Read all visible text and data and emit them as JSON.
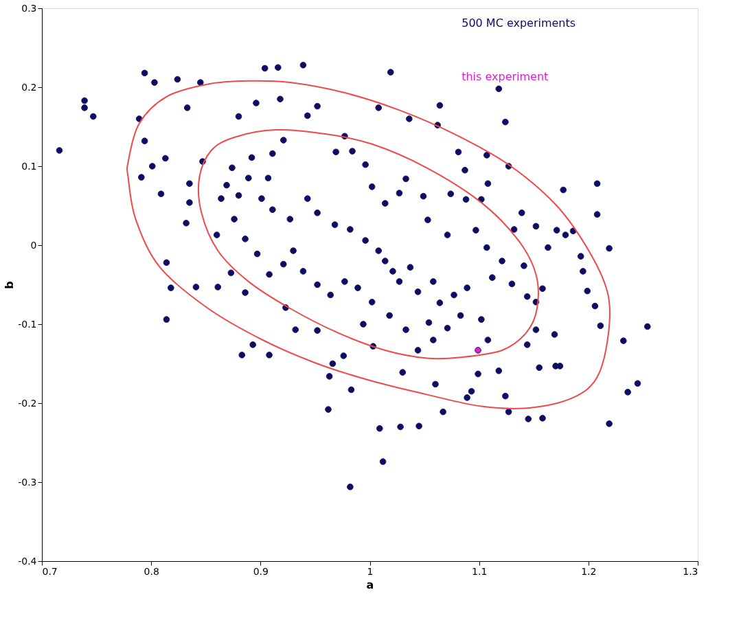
{
  "chart_data": {
    "type": "scatter",
    "xlabel": "a",
    "ylabel": "b",
    "xlim": [
      0.7,
      1.3
    ],
    "ylim": [
      -0.4,
      0.3
    ],
    "xticks": [
      0.7,
      0.8,
      0.9,
      1,
      1.1,
      1.2,
      1.3
    ],
    "yticks": [
      -0.4,
      -0.3,
      -0.2,
      -0.1,
      0,
      0.1,
      0.2,
      0.3
    ],
    "grid": false,
    "legend": "top right",
    "marker": "circle",
    "series": [
      {
        "name": "500 MC experiments",
        "color": "#0c0c66",
        "x": [
          0.716,
          0.739,
          0.739,
          0.747,
          0.794,
          0.803,
          0.789,
          0.794,
          0.801,
          0.791,
          0.809,
          0.813,
          0.824,
          0.833,
          0.845,
          0.814,
          0.818,
          0.814,
          0.841,
          0.861,
          0.832,
          0.835,
          0.835,
          0.86,
          0.847,
          0.864,
          0.873,
          0.883,
          0.88,
          0.896,
          0.904,
          0.916,
          0.939,
          0.918,
          0.886,
          0.893,
          0.908,
          0.923,
          0.932,
          0.952,
          0.966,
          0.963,
          0.962,
          0.983,
          0.976,
          0.982,
          1.009,
          1.012,
          1.028,
          1.045,
          1.067,
          1.06,
          1.019,
          1.008,
          1.036,
          1.064,
          1.062,
          1.081,
          1.087,
          1.107,
          1.118,
          1.124,
          1.108,
          1.127,
          1.139,
          1.132,
          1.152,
          1.163,
          1.177,
          1.171,
          1.179,
          1.186,
          1.193,
          1.208,
          1.208,
          1.219,
          1.195,
          1.199,
          1.206,
          1.211,
          1.219,
          1.232,
          1.236,
          1.245,
          1.254,
          1.17,
          1.174,
          1.158,
          1.145,
          1.127,
          1.124,
          1.118,
          1.155,
          1.144,
          1.152,
          1.169,
          1.158,
          1.152,
          1.144,
          1.13,
          1.141,
          1.121,
          1.112,
          1.107,
          1.097,
          1.102,
          1.088,
          1.074,
          1.071,
          1.053,
          1.049,
          1.033,
          1.027,
          1.014,
          1.002,
          0.996,
          0.984,
          0.969,
          0.977,
          0.952,
          0.943,
          0.921,
          0.911,
          0.907,
          0.901,
          0.911,
          0.927,
          0.943,
          0.952,
          0.968,
          0.982,
          0.996,
          1.008,
          1.014,
          1.021,
          1.027,
          1.037,
          1.044,
          1.058,
          1.064,
          1.077,
          1.089,
          1.083,
          1.071,
          1.058,
          1.044,
          1.033,
          1.018,
          1.002,
          0.989,
          0.977,
          0.964,
          0.952,
          0.939,
          0.93,
          0.921,
          0.908,
          0.897,
          0.886,
          0.876,
          0.88,
          0.889,
          0.892,
          0.874,
          0.869,
          1.102,
          1.108,
          1.099,
          1.093,
          1.089,
          1.054,
          1.003,
          0.994,
          1.03
        ],
        "values": [
          0.12,
          0.183,
          0.174,
          0.163,
          0.218,
          0.206,
          0.16,
          0.132,
          0.1,
          0.086,
          0.065,
          0.11,
          0.21,
          0.174,
          0.206,
          -0.022,
          -0.054,
          -0.094,
          -0.053,
          -0.053,
          0.028,
          0.054,
          0.078,
          0.013,
          0.106,
          0.059,
          -0.035,
          -0.139,
          0.163,
          0.18,
          0.224,
          0.225,
          0.228,
          0.185,
          -0.06,
          -0.126,
          -0.139,
          -0.079,
          -0.107,
          -0.108,
          -0.15,
          -0.166,
          -0.208,
          -0.183,
          -0.14,
          -0.306,
          -0.232,
          -0.274,
          -0.23,
          -0.229,
          -0.211,
          -0.176,
          0.219,
          0.174,
          0.16,
          0.177,
          0.152,
          0.118,
          0.095,
          0.114,
          0.198,
          0.156,
          0.078,
          0.1,
          0.041,
          0.02,
          0.024,
          -0.003,
          0.07,
          0.019,
          0.013,
          0.018,
          -0.014,
          0.078,
          0.039,
          -0.004,
          -0.033,
          -0.058,
          -0.077,
          -0.102,
          -0.226,
          -0.121,
          -0.186,
          -0.175,
          -0.103,
          -0.153,
          -0.153,
          -0.219,
          -0.22,
          -0.211,
          -0.191,
          -0.159,
          -0.155,
          -0.126,
          -0.107,
          -0.113,
          -0.055,
          -0.072,
          -0.065,
          -0.049,
          -0.026,
          -0.02,
          -0.041,
          -0.003,
          0.019,
          0.058,
          0.058,
          0.065,
          0.013,
          0.032,
          0.062,
          0.084,
          0.066,
          0.053,
          0.074,
          0.102,
          0.119,
          0.118,
          0.138,
          0.176,
          0.164,
          0.133,
          0.116,
          0.085,
          0.059,
          0.045,
          0.033,
          0.059,
          0.041,
          0.026,
          0.02,
          0.006,
          -0.007,
          -0.02,
          -0.033,
          -0.046,
          -0.028,
          -0.059,
          -0.046,
          -0.073,
          -0.063,
          -0.054,
          -0.089,
          -0.105,
          -0.12,
          -0.133,
          -0.107,
          -0.089,
          -0.072,
          -0.054,
          -0.046,
          -0.063,
          -0.05,
          -0.033,
          -0.007,
          -0.024,
          -0.037,
          -0.011,
          0.008,
          0.033,
          0.063,
          0.085,
          0.111,
          0.098,
          0.076,
          -0.094,
          -0.12,
          -0.163,
          -0.185,
          -0.193,
          -0.098,
          -0.128,
          -0.1,
          -0.161
        ]
      },
      {
        "name": "this experiment",
        "color": "#e020d0",
        "x": [
          1.099
        ],
        "values": [
          -0.133
        ]
      }
    ]
  }
}
